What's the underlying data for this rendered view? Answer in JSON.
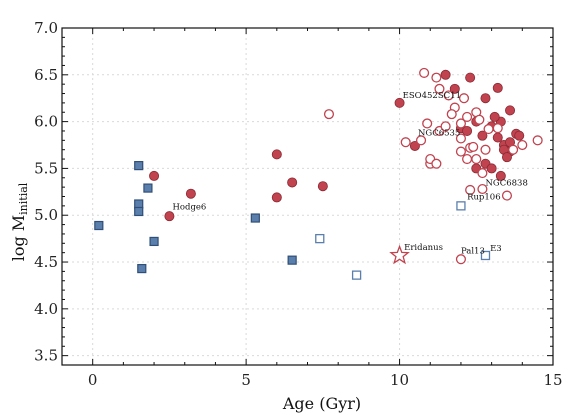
{
  "chart_data": {
    "type": "scatter",
    "xlabel": "Age (Gyr)",
    "ylabel_main": "log M",
    "ylabel_sub": "initial",
    "xlim": [
      -1,
      15
    ],
    "ylim": [
      3.4,
      7.0
    ],
    "xticks": [
      0,
      5,
      10,
      15
    ],
    "yticks": [
      3.5,
      4.0,
      4.5,
      5.0,
      5.5,
      6.0,
      6.5,
      7.0
    ],
    "ytick_labels": [
      "3.5",
      "4.0",
      "4.5",
      "5.0",
      "5.5",
      "6.0",
      "6.5",
      "7.0"
    ],
    "grid": true,
    "colors": {
      "red": "#c0434f",
      "blue": "#5b7fad",
      "blue_dark": "#2f4f78",
      "red_dark": "#8a2a33"
    },
    "series": [
      {
        "marker": "circle-filled",
        "points": [
          [
            2.0,
            5.42
          ],
          [
            3.2,
            5.23
          ],
          [
            2.5,
            4.99
          ],
          [
            6.0,
            5.65
          ],
          [
            6.5,
            5.35
          ],
          [
            6.0,
            5.19
          ],
          [
            7.5,
            5.31
          ],
          [
            10.0,
            6.2
          ],
          [
            10.5,
            5.74
          ],
          [
            11.5,
            6.5
          ],
          [
            11.8,
            6.35
          ],
          [
            12.3,
            6.47
          ],
          [
            12.8,
            6.25
          ],
          [
            13.2,
            6.36
          ],
          [
            13.3,
            6.0
          ],
          [
            13.6,
            6.12
          ],
          [
            12.0,
            5.93
          ],
          [
            12.5,
            6.0
          ],
          [
            12.7,
            5.85
          ],
          [
            13.0,
            5.95
          ],
          [
            13.2,
            5.83
          ],
          [
            13.4,
            5.75
          ],
          [
            13.6,
            5.68
          ],
          [
            13.8,
            5.87
          ],
          [
            13.9,
            5.85
          ],
          [
            13.6,
            5.78
          ],
          [
            13.4,
            5.7
          ],
          [
            13.5,
            5.62
          ],
          [
            12.8,
            5.55
          ],
          [
            12.5,
            5.5
          ],
          [
            13.0,
            5.5
          ],
          [
            13.3,
            5.42
          ],
          [
            12.2,
            5.9
          ],
          [
            13.1,
            6.05
          ]
        ]
      },
      {
        "marker": "circle-open",
        "points": [
          [
            7.7,
            6.08
          ],
          [
            10.2,
            5.78
          ],
          [
            10.7,
            5.8
          ],
          [
            11.0,
            5.55
          ],
          [
            11.0,
            5.6
          ],
          [
            11.2,
            5.55
          ],
          [
            11.3,
            5.9
          ],
          [
            11.5,
            5.95
          ],
          [
            10.8,
            6.52
          ],
          [
            11.2,
            6.47
          ],
          [
            11.3,
            6.35
          ],
          [
            11.6,
            6.28
          ],
          [
            12.1,
            6.25
          ],
          [
            12.5,
            6.1
          ],
          [
            11.8,
            6.15
          ],
          [
            12.2,
            6.05
          ],
          [
            12.6,
            6.02
          ],
          [
            11.7,
            6.08
          ],
          [
            12.0,
            5.98
          ],
          [
            12.0,
            5.82
          ],
          [
            12.3,
            5.72
          ],
          [
            12.4,
            5.73
          ],
          [
            12.8,
            5.7
          ],
          [
            12.0,
            5.68
          ],
          [
            12.2,
            5.6
          ],
          [
            12.5,
            5.6
          ],
          [
            12.7,
            5.45
          ],
          [
            12.3,
            5.27
          ],
          [
            12.7,
            5.28
          ],
          [
            13.5,
            5.21
          ],
          [
            13.2,
            5.93
          ],
          [
            12.9,
            5.92
          ],
          [
            13.7,
            5.7
          ],
          [
            14.0,
            5.75
          ],
          [
            14.5,
            5.8
          ],
          [
            10.9,
            5.98
          ],
          [
            12.0,
            4.53
          ]
        ]
      },
      {
        "marker": "square-filled",
        "points": [
          [
            0.2,
            4.89
          ],
          [
            1.5,
            5.53
          ],
          [
            1.5,
            5.12
          ],
          [
            1.5,
            5.04
          ],
          [
            1.8,
            5.29
          ],
          [
            2.0,
            4.72
          ],
          [
            1.6,
            4.43
          ],
          [
            5.3,
            4.97
          ],
          [
            6.5,
            4.52
          ]
        ]
      },
      {
        "marker": "square-open",
        "points": [
          [
            7.4,
            4.75
          ],
          [
            8.6,
            4.36
          ],
          [
            12.0,
            5.1
          ],
          [
            12.8,
            4.57
          ]
        ]
      },
      {
        "marker": "star-open",
        "points": [
          [
            10.0,
            4.57
          ]
        ]
      }
    ],
    "annotations": [
      {
        "text": "Hodge6",
        "x": 2.6,
        "y": 5.06
      },
      {
        "text": "ESO452SC11",
        "x": 10.1,
        "y": 6.25
      },
      {
        "text": "NGC6535",
        "x": 10.6,
        "y": 5.85
      },
      {
        "text": "NGC6838",
        "x": 12.8,
        "y": 5.32
      },
      {
        "text": "Rup106",
        "x": 12.2,
        "y": 5.17
      },
      {
        "text": "Eridanus",
        "x": 10.15,
        "y": 4.63
      },
      {
        "text": "Pal13",
        "x": 12.0,
        "y": 4.59
      },
      {
        "text": "E3",
        "x": 12.95,
        "y": 4.62
      }
    ]
  }
}
